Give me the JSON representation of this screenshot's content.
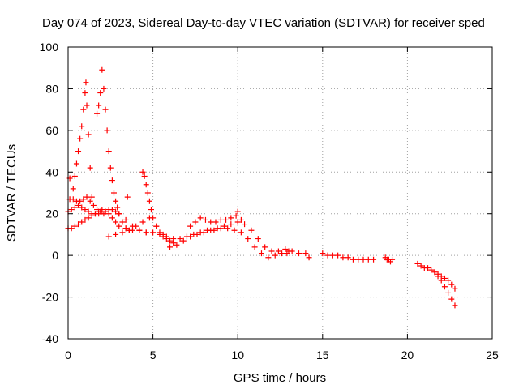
{
  "chart_data": {
    "type": "scatter",
    "title": "Day 074 of 2023, Sidereal Day-to-day VTEC variation (SDTVAR) for receiver sped",
    "xlabel": "GPS time / hours",
    "ylabel": "SDTVAR / TECUs",
    "xlim": [
      0,
      25
    ],
    "ylim": [
      -40,
      100
    ],
    "xticks": [
      0,
      5,
      10,
      15,
      20,
      25
    ],
    "yticks": [
      -40,
      -20,
      0,
      20,
      40,
      60,
      80,
      100
    ],
    "grid": true,
    "marker": "+",
    "color": "#ff0000",
    "series": [
      {
        "name": "track-a",
        "x": [
          0.0,
          0.2,
          0.4,
          0.6,
          0.8,
          1.0,
          1.2,
          1.4,
          1.6,
          1.8,
          2.0,
          2.2,
          2.4,
          2.6,
          2.8,
          3.0,
          3.4,
          3.8,
          4.2,
          4.6,
          5.0,
          5.4,
          5.8,
          6.2,
          6.6,
          7.0,
          7.4,
          7.8,
          8.2,
          8.6,
          9.0,
          9.4,
          9.8,
          10.2,
          10.6,
          11.0,
          11.4,
          11.8,
          12.2,
          12.6,
          13.0
        ],
        "y": [
          21,
          22,
          23,
          24,
          23,
          22,
          21,
          20,
          20,
          21,
          22,
          21,
          20,
          18,
          16,
          14,
          13,
          12,
          12,
          11,
          11,
          10,
          9,
          8,
          8,
          9,
          10,
          11,
          12,
          12,
          13,
          13,
          12,
          11,
          8,
          4,
          1,
          -1,
          0,
          1,
          2
        ]
      },
      {
        "name": "track-b",
        "x": [
          0.0,
          0.2,
          0.4,
          0.6,
          0.8,
          1.0,
          1.2,
          1.4,
          1.6,
          1.8,
          2.0,
          2.2,
          2.4,
          2.6,
          2.8,
          3.0,
          3.4,
          3.8,
          4.2,
          4.6
        ],
        "y": [
          13,
          13,
          14,
          15,
          16,
          17,
          18,
          19,
          20,
          20,
          21,
          21,
          22,
          22,
          21,
          20,
          17,
          14,
          12,
          11
        ]
      },
      {
        "name": "track-c",
        "x": [
          0.1,
          0.3,
          0.5,
          0.7,
          0.9,
          1.1,
          1.3,
          1.5,
          1.7,
          1.9,
          2.1
        ],
        "y": [
          27,
          27,
          26,
          26,
          27,
          28,
          26,
          24,
          22,
          21,
          20
        ]
      },
      {
        "name": "spike-1",
        "x": [
          0.3,
          0.4,
          0.5,
          0.6,
          0.7,
          0.8,
          0.9,
          1.0,
          1.05,
          1.1,
          1.2,
          1.3
        ],
        "y": [
          32,
          38,
          44,
          50,
          56,
          62,
          70,
          78,
          83,
          72,
          58,
          42
        ]
      },
      {
        "name": "spike-2",
        "x": [
          1.7,
          1.8,
          1.9,
          2.0,
          2.1,
          2.2,
          2.3,
          2.4,
          2.5,
          2.6,
          2.7,
          2.8,
          2.9,
          3.0,
          3.2,
          3.4,
          3.6
        ],
        "y": [
          68,
          72,
          78,
          89,
          80,
          70,
          60,
          50,
          42,
          36,
          30,
          26,
          23,
          20,
          16,
          13,
          12
        ]
      },
      {
        "name": "spike-3",
        "x": [
          4.4,
          4.5,
          4.6,
          4.7,
          4.8,
          4.9,
          5.0,
          5.2,
          5.4,
          5.6,
          5.8,
          6.0,
          6.2
        ],
        "y": [
          40,
          38,
          34,
          30,
          26,
          22,
          18,
          14,
          11,
          9,
          8,
          7,
          6
        ]
      },
      {
        "name": "track-d",
        "x": [
          2.4,
          2.8,
          3.2,
          3.6,
          4.0,
          4.4,
          4.8,
          5.2,
          5.6
        ],
        "y": [
          9,
          10,
          11,
          12,
          14,
          16,
          18,
          14,
          10
        ]
      },
      {
        "name": "track-e",
        "x": [
          6.0,
          6.4,
          6.8,
          7.2,
          7.6,
          8.0,
          8.4,
          8.8,
          9.2,
          9.6,
          10.0,
          10.4,
          10.8,
          11.2,
          11.6,
          12.0,
          12.4,
          12.8,
          13.2,
          13.6,
          14.0
        ],
        "y": [
          4,
          5,
          7,
          9,
          10,
          11,
          12,
          13,
          14,
          15,
          16,
          15,
          12,
          8,
          4,
          2,
          2,
          3,
          2,
          1,
          1
        ]
      },
      {
        "name": "track-f",
        "x": [
          7.2,
          7.5,
          7.8,
          8.1,
          8.4,
          8.7,
          9.0,
          9.3,
          9.6,
          9.9,
          10.0,
          10.2
        ],
        "y": [
          14,
          16,
          18,
          17,
          16,
          16,
          17,
          17,
          18,
          19,
          21,
          17
        ]
      },
      {
        "name": "track-g",
        "x": [
          15.0,
          15.3,
          15.6,
          15.9,
          16.2,
          16.5,
          16.8,
          17.1,
          17.4,
          17.7,
          18.0
        ],
        "y": [
          1,
          0,
          0,
          0,
          -1,
          -1,
          -2,
          -2,
          -2,
          -2,
          -2
        ]
      },
      {
        "name": "track-h",
        "x": [
          18.7,
          18.8,
          18.9,
          19.0,
          19.1
        ],
        "y": [
          -1,
          -2,
          -2,
          -3,
          -2
        ]
      },
      {
        "name": "track-i",
        "x": [
          20.6,
          20.8,
          21.0,
          21.2,
          21.4,
          21.6,
          21.8,
          22.0,
          22.2,
          22.4,
          22.6,
          22.8
        ],
        "y": [
          -4,
          -5,
          -6,
          -6,
          -7,
          -8,
          -9,
          -10,
          -11,
          -12,
          -14,
          -16
        ]
      },
      {
        "name": "track-j",
        "x": [
          21.8,
          22.0,
          22.2,
          22.4,
          22.6,
          22.8
        ],
        "y": [
          -10,
          -12,
          -15,
          -18,
          -21,
          -24
        ]
      },
      {
        "name": "outliers",
        "x": [
          0.1,
          1.4,
          3.5,
          12.9,
          14.2
        ],
        "y": [
          37,
          28,
          28,
          1,
          -1
        ]
      }
    ]
  }
}
